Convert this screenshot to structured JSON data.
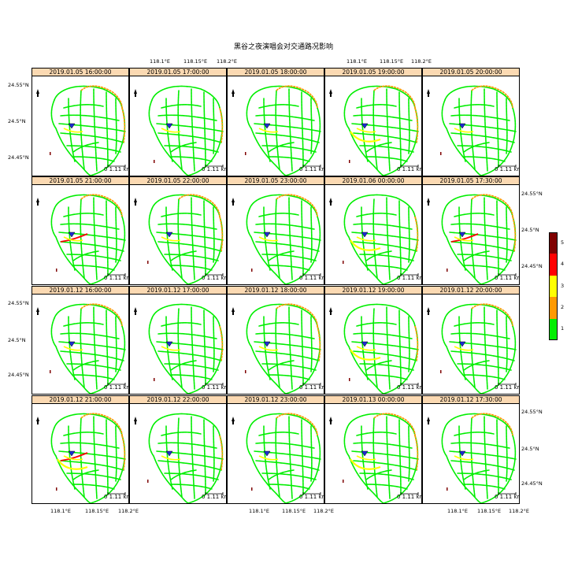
{
  "title": "黑谷之夜演唱会对交通路况影响",
  "panels": [
    "2019.01.05 16:00:00",
    "2019.01.05 17:00:00",
    "2019.01.05 18:00:00",
    "2019.01.05 19:00:00",
    "2019.01.05 20:00:00",
    "2019.01.05 21:00:00",
    "2019.01.05 22:00:00",
    "2019.01.05 23:00:00",
    "2019.01.06 00:00:00",
    "2019.01.05 17:30:00",
    "2019.01.12 16:00:00",
    "2019.01.12 17:00:00",
    "2019.01.12 18:00:00",
    "2019.01.12 19:00:00",
    "2019.01.12 20:00:00",
    "2019.01.12 21:00:00",
    "2019.01.12 22:00:00",
    "2019.01.12 23:00:00",
    "2019.01.13 00:00:00",
    "2019.01.12 17:30:00"
  ],
  "scale_bar": {
    "label_zero": "0",
    "label_value": "1.11 km"
  },
  "axes": {
    "lon_ticks": [
      "118.1°E",
      "118.15°E",
      "118.2°E"
    ],
    "lat_ticks": [
      "24.55°N",
      "24.5°N",
      "24.45°N"
    ]
  },
  "legend": {
    "levels": [
      {
        "label": "5",
        "color": "#7f0000"
      },
      {
        "label": "4",
        "color": "#ff0000"
      },
      {
        "label": "3",
        "color": "#ffff00"
      },
      {
        "label": "2",
        "color": "#ff9900"
      },
      {
        "label": "1",
        "color": "#00ee00"
      }
    ]
  },
  "icons": {
    "north_arrow": "north-arrow-icon",
    "venue_marker": "venue-marker-icon"
  }
}
